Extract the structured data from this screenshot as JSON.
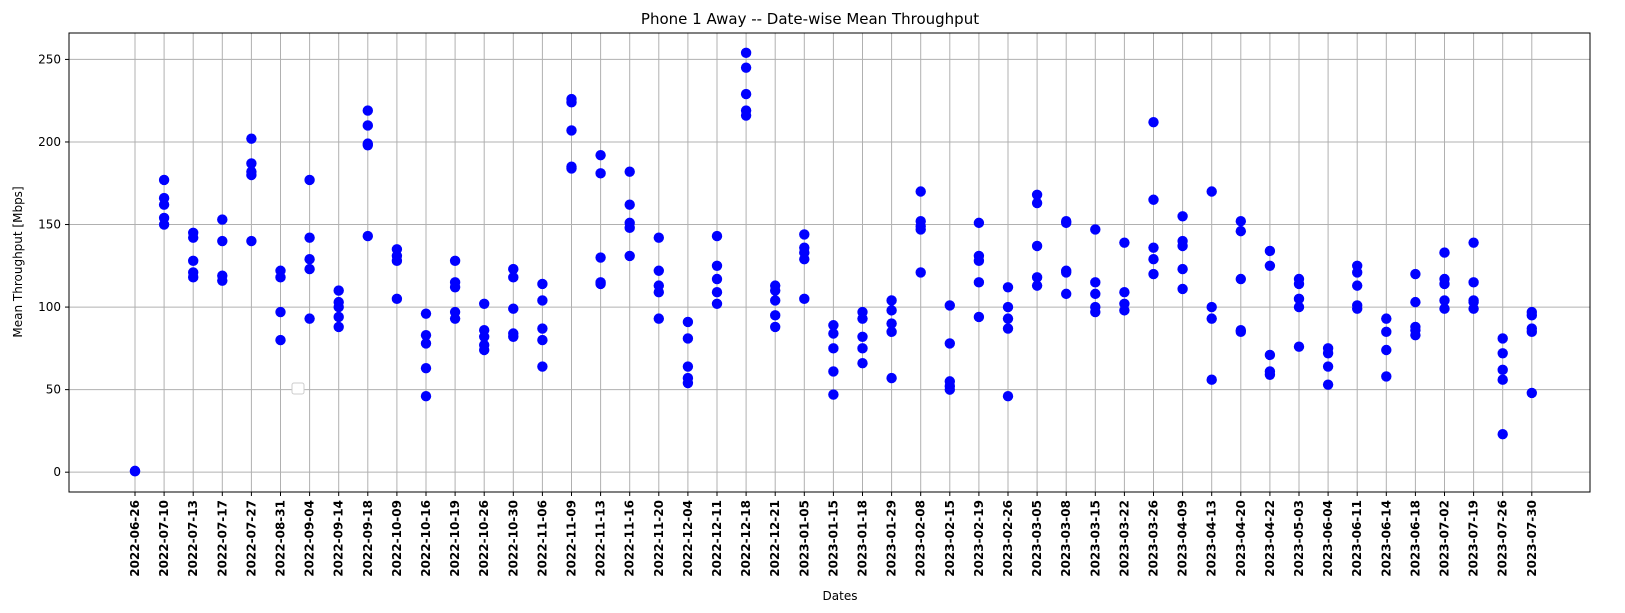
{
  "chart_data": {
    "type": "scatter",
    "title": "Phone 1 Away -- Date-wise Mean Throughput",
    "xlabel": "Dates",
    "ylabel": "Mean Throughput [Mbps]",
    "ylim": [
      -12,
      266
    ],
    "yticks": [
      0,
      50,
      100,
      150,
      200,
      250
    ],
    "grid": true,
    "legend": "empty legend box near lower left",
    "marker_color": "#0000ff",
    "categories": [
      "2022-06-26",
      "2022-07-10",
      "2022-07-13",
      "2022-07-17",
      "2022-07-27",
      "2022-08-31",
      "2022-09-04",
      "2022-09-14",
      "2022-09-18",
      "2022-10-09",
      "2022-10-16",
      "2022-10-19",
      "2022-10-26",
      "2022-10-30",
      "2022-11-06",
      "2022-11-09",
      "2022-11-13",
      "2022-11-16",
      "2022-11-20",
      "2022-12-04",
      "2022-12-11",
      "2022-12-18",
      "2022-12-21",
      "2023-01-05",
      "2023-01-15",
      "2023-01-18",
      "2023-01-29",
      "2023-02-08",
      "2023-02-15",
      "2023-02-19",
      "2023-02-26",
      "2023-03-05",
      "2023-03-08",
      "2023-03-15",
      "2023-03-22",
      "2023-03-26",
      "2023-04-09",
      "2023-04-13",
      "2023-04-20",
      "2023-04-22",
      "2023-05-03",
      "2023-06-04",
      "2023-06-11",
      "2023-06-14",
      "2023-06-18",
      "2023-07-02",
      "2023-07-19",
      "2023-07-26",
      "2023-07-30"
    ],
    "values": [
      [
        0.5,
        0.8
      ],
      [
        150,
        154,
        162,
        166,
        177
      ],
      [
        118,
        121,
        128,
        142,
        145
      ],
      [
        116,
        119,
        140,
        153
      ],
      [
        140,
        180,
        182,
        187,
        202
      ],
      [
        80,
        97,
        118,
        122
      ],
      [
        93,
        123,
        129,
        142,
        177
      ],
      [
        88,
        94,
        100,
        103,
        110
      ],
      [
        143,
        198,
        199,
        210,
        219
      ],
      [
        105,
        128,
        131,
        135
      ],
      [
        46,
        63,
        78,
        83,
        96
      ],
      [
        93,
        97,
        112,
        115,
        128
      ],
      [
        74,
        77,
        82,
        86,
        102
      ],
      [
        82,
        84,
        99,
        118,
        123
      ],
      [
        64,
        80,
        87,
        104,
        114
      ],
      [
        184,
        185,
        207,
        224,
        226
      ],
      [
        114,
        115,
        130,
        181,
        192
      ],
      [
        131,
        148,
        151,
        162,
        182
      ],
      [
        93,
        109,
        113,
        122,
        142
      ],
      [
        54,
        57,
        64,
        81,
        91
      ],
      [
        102,
        109,
        117,
        125,
        143
      ],
      [
        216,
        219,
        229,
        245,
        254
      ],
      [
        88,
        95,
        104,
        110,
        113
      ],
      [
        105,
        129,
        133,
        136,
        144
      ],
      [
        47,
        61,
        75,
        84,
        89
      ],
      [
        66,
        75,
        82,
        93,
        97
      ],
      [
        57,
        85,
        90,
        98,
        104
      ],
      [
        121,
        147,
        149,
        152,
        170
      ],
      [
        50,
        52,
        55,
        78,
        101
      ],
      [
        94,
        115,
        128,
        131,
        151
      ],
      [
        46,
        87,
        93,
        100,
        112
      ],
      [
        113,
        118,
        137,
        163,
        168
      ],
      [
        108,
        121,
        122,
        151,
        152
      ],
      [
        97,
        100,
        108,
        115,
        147
      ],
      [
        98,
        102,
        109,
        139
      ],
      [
        120,
        129,
        136,
        165,
        212
      ],
      [
        111,
        123,
        137,
        140,
        155
      ],
      [
        56,
        93,
        100,
        170
      ],
      [
        85,
        86,
        117,
        146,
        152
      ],
      [
        59,
        61,
        71,
        125,
        134
      ],
      [
        76,
        100,
        105,
        114,
        117
      ],
      [
        53,
        64,
        72,
        75
      ],
      [
        99,
        101,
        113,
        121,
        125
      ],
      [
        58,
        74,
        85,
        93
      ],
      [
        83,
        86,
        88,
        103,
        120
      ],
      [
        99,
        104,
        114,
        117,
        133
      ],
      [
        99,
        103,
        104,
        115,
        139
      ],
      [
        23,
        56,
        62,
        72,
        81
      ],
      [
        48,
        85,
        87,
        95,
        97
      ]
    ]
  }
}
